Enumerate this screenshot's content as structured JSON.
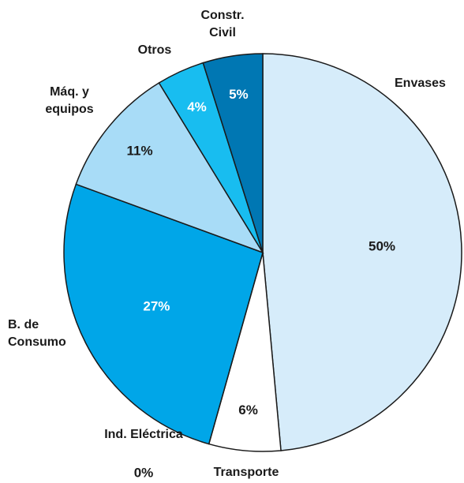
{
  "chart_data": {
    "type": "pie",
    "categories": [
      "Envases",
      "Transporte",
      "Ind. Eléctrica",
      "B. de Consumo",
      "Máq. y equipos",
      "Otros",
      "Constr. Civil"
    ],
    "values": [
      50,
      6,
      0,
      27,
      11,
      4,
      5
    ],
    "value_labels": [
      "50%",
      "6%",
      "0%",
      "27%",
      "11%",
      "4%",
      "5%"
    ],
    "colors": [
      "#d6ecfa",
      "#ffffff",
      "#0077b3",
      "#00a6e8",
      "#a8dcf7",
      "#18bdf0",
      "#0077b3"
    ]
  }
}
